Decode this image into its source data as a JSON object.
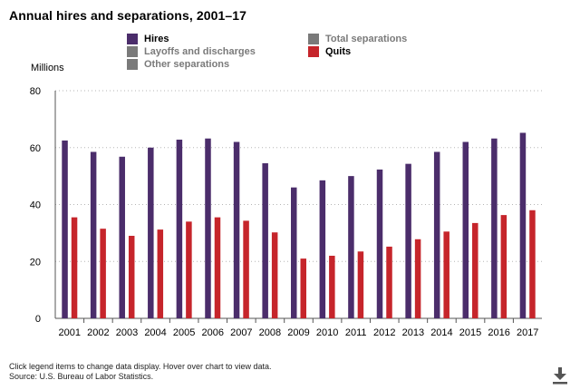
{
  "header": {
    "title": "Annual hires and separations, 2001–17"
  },
  "legend": [
    {
      "name": "Hires",
      "color": "#4b2d6b",
      "active": true
    },
    {
      "name": "Layoffs and discharges",
      "color": "#7a7a7a",
      "active": false
    },
    {
      "name": "Other separations",
      "color": "#7a7a7a",
      "active": false
    },
    {
      "name": "Total separations",
      "color": "#7a7a7a",
      "active": false
    },
    {
      "name": "Quits",
      "color": "#c6252b",
      "active": true
    }
  ],
  "chart_data": {
    "type": "bar",
    "title": "Annual hires and separations, 2001–17",
    "ylabel": "Millions",
    "xlabel": "",
    "ylim": [
      0,
      80
    ],
    "yticks": [
      0,
      20,
      40,
      60,
      80
    ],
    "grid": true,
    "categories": [
      "2001",
      "2002",
      "2003",
      "2004",
      "2005",
      "2006",
      "2007",
      "2008",
      "2009",
      "2010",
      "2011",
      "2012",
      "2013",
      "2014",
      "2015",
      "2016",
      "2017"
    ],
    "series": [
      {
        "name": "Hires",
        "color": "#4b2d6b",
        "values": [
          62.5,
          58.5,
          56.8,
          60.0,
          62.8,
          63.2,
          62.0,
          54.5,
          46.0,
          48.5,
          50.0,
          52.3,
          54.3,
          58.5,
          62.0,
          63.2,
          65.2
        ]
      },
      {
        "name": "Quits",
        "color": "#c6252b",
        "values": [
          35.5,
          31.5,
          29.0,
          31.2,
          34.0,
          35.5,
          34.3,
          30.2,
          21.0,
          22.0,
          23.5,
          25.2,
          27.8,
          30.5,
          33.5,
          36.3,
          38.0
        ]
      }
    ]
  },
  "footer": {
    "note": "Click legend items to change data display. Hover over chart to view data.",
    "source": "Source: U.S. Bureau of Labor Statistics."
  },
  "icons": {
    "download": "download-icon"
  }
}
